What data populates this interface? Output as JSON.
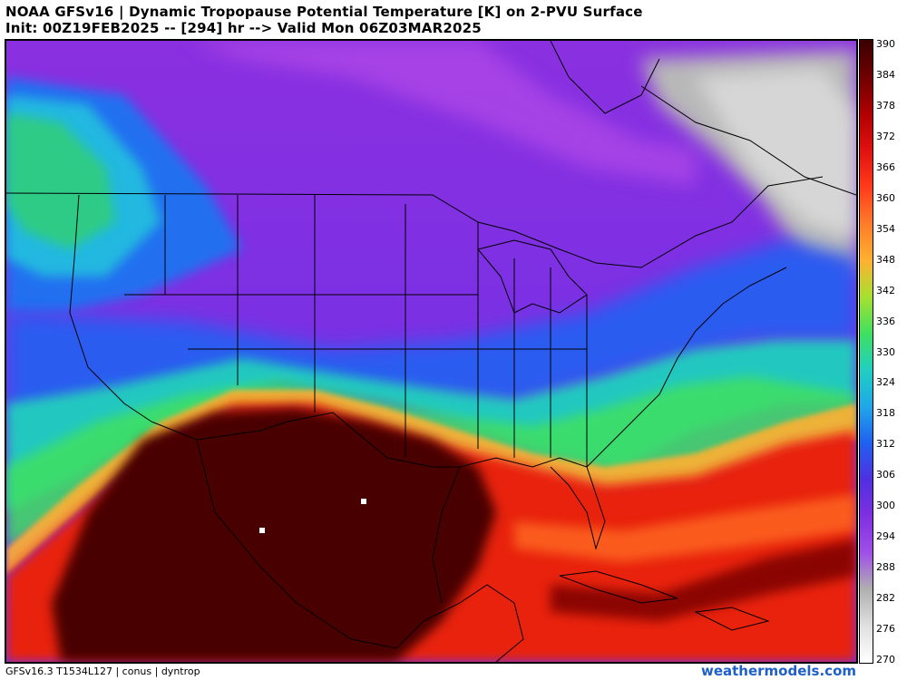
{
  "header": {
    "line1": "NOAA GFSv16 | Dynamic Tropopause Potential Temperature [K] on 2-PVU Surface",
    "line2": "Init: 00Z19FEB2025 -- [294] hr --> Valid Mon 06Z03MAR2025"
  },
  "colorbar": {
    "ticks": [
      "390",
      "384",
      "378",
      "372",
      "366",
      "360",
      "354",
      "348",
      "342",
      "336",
      "330",
      "324",
      "318",
      "312",
      "306",
      "300",
      "294",
      "288",
      "282",
      "276",
      "270"
    ],
    "colors": [
      "#3a0000",
      "#6e0000",
      "#b00000",
      "#e01010",
      "#ff3a1a",
      "#ff7a2a",
      "#ffb030",
      "#a8e030",
      "#40e060",
      "#20d0c0",
      "#20a8e8",
      "#2060f0",
      "#5030e0",
      "#8030e0",
      "#a050e8",
      "#b0b0b0",
      "#e0e0e0",
      "#ffffff"
    ]
  },
  "map": {
    "region": "conus",
    "field": "dyntrop",
    "overlays": [
      "state-borders",
      "country-borders",
      "coastlines"
    ]
  },
  "footer": {
    "left": "GFSv16.3 T1534L127 | conus | dyntrop",
    "right": "weathermodels.com"
  }
}
